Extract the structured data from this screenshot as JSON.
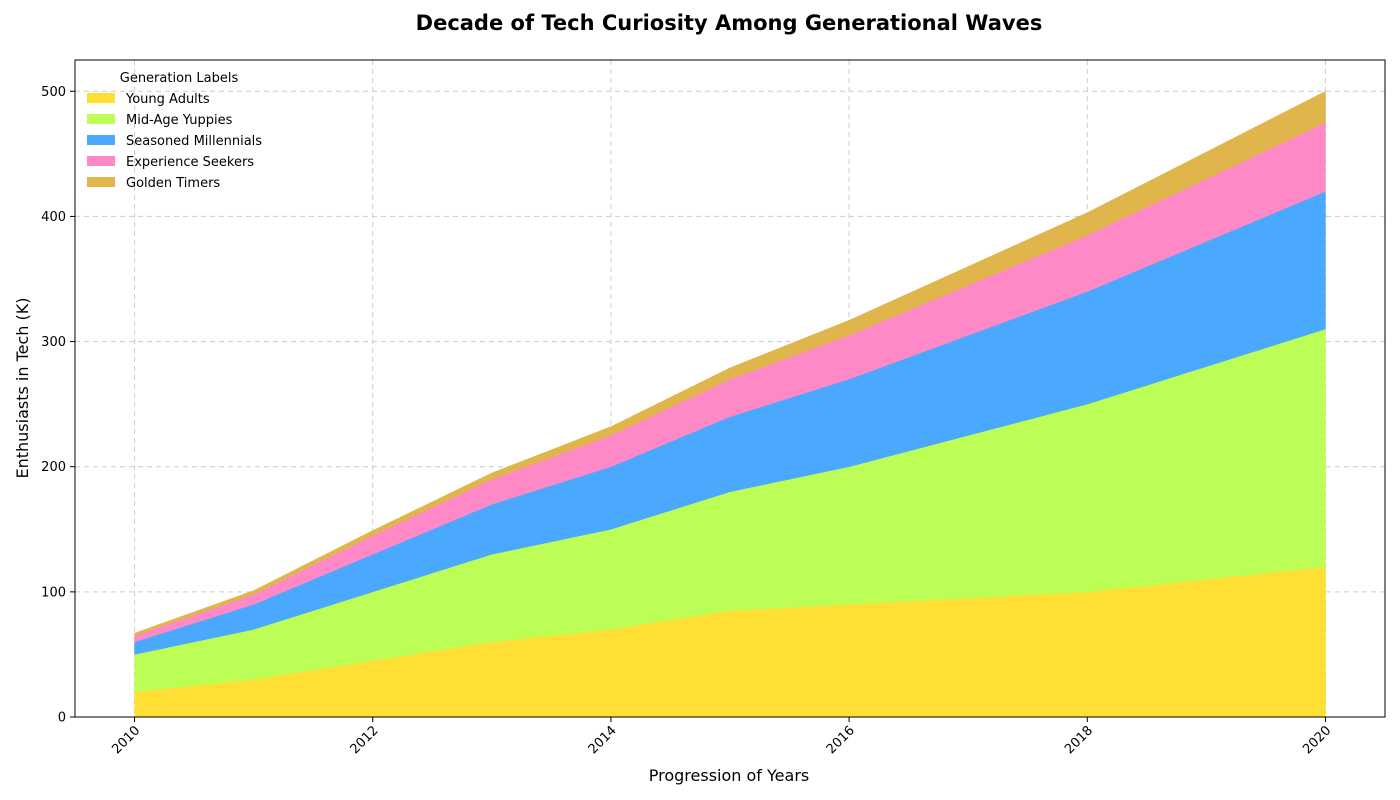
{
  "chart_data": {
    "type": "area",
    "stacked": true,
    "title": "Decade of Tech Curiosity Among Generational Waves",
    "xlabel": "Progression of Years",
    "ylabel": "Enthusiasts in Tech (K)",
    "xlim": [
      2009.5,
      2020.5
    ],
    "ylim": [
      0,
      525
    ],
    "xticks": [
      2010,
      2012,
      2014,
      2016,
      2018,
      2020
    ],
    "yticks": [
      0,
      100,
      200,
      300,
      400,
      500
    ],
    "grid": true,
    "legend_title": "Generation Labels",
    "legend_position": "top-left",
    "x": [
      2010,
      2011,
      2012,
      2013,
      2014,
      2015,
      2016,
      2018,
      2020
    ],
    "series": [
      {
        "name": "Young Adults",
        "color": "#FFDF34",
        "values": [
          20,
          30,
          45,
          60,
          70,
          85,
          90,
          100,
          120
        ]
      },
      {
        "name": "Mid-Age Yuppies",
        "color": "#BDFE56",
        "values": [
          30,
          40,
          55,
          70,
          80,
          95,
          110,
          150,
          190
        ]
      },
      {
        "name": "Seasoned Millennials",
        "color": "#4AA8FF",
        "values": [
          10,
          20,
          30,
          40,
          50,
          60,
          70,
          90,
          110
        ]
      },
      {
        "name": "Experience Seekers",
        "color": "#FF88C7",
        "values": [
          5,
          8,
          15,
          20,
          25,
          30,
          35,
          45,
          55
        ]
      },
      {
        "name": "Golden Timers",
        "color": "#E0B64C",
        "values": [
          2,
          3,
          4,
          5,
          7,
          9,
          12,
          18,
          25
        ]
      }
    ]
  }
}
